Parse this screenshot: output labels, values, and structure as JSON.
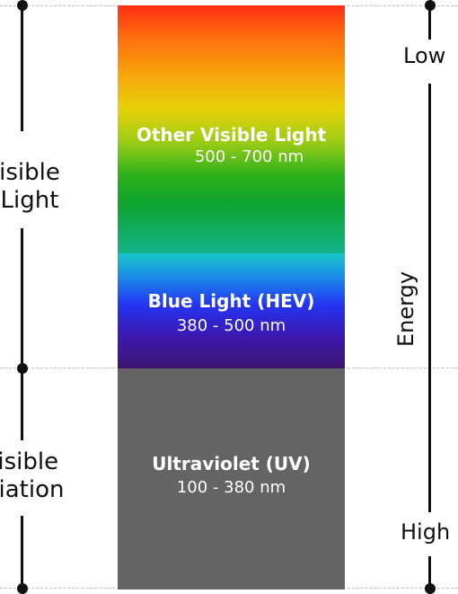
{
  "bands": {
    "visible": {
      "title": "Other Visible Light",
      "range": "500 - 700 nm"
    },
    "blue": {
      "title": "Blue Light (HEV)",
      "range": "380 - 500 nm"
    },
    "uv": {
      "title": "Ultraviolet (UV)",
      "range": "100 - 380 nm"
    }
  },
  "left_labels": {
    "visible": [
      "isible",
      "Light"
    ],
    "invisible": [
      "visible",
      "diation"
    ]
  },
  "energy_axis": {
    "title": "Energy",
    "low": "Low",
    "high": "High"
  },
  "colors": {
    "uv_band": "#646464",
    "axis": "#111111",
    "dashed_line": "#bdbdbd",
    "band_text": "#ffffff"
  }
}
